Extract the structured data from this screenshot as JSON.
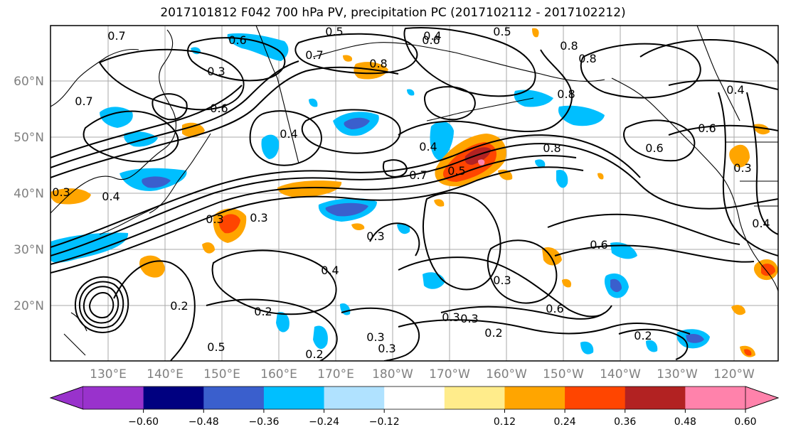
{
  "title": "2017101812 F042 700 hPa PV, precipitation PC (2017102112 - 2017102212)",
  "map": {
    "lat_ticks": [
      "60°N",
      "50°N",
      "40°N",
      "30°N",
      "20°N"
    ],
    "lon_ticks": [
      "130°E",
      "140°E",
      "150°E",
      "160°E",
      "170°E",
      "180°W",
      "170°W",
      "160°W",
      "150°W",
      "140°W",
      "130°W",
      "120°W"
    ],
    "contour_labels": [
      "0.7",
      "0.5",
      "0.4",
      "0.5",
      "0.8",
      "0.6",
      "0.6",
      "0.7",
      "0.8",
      "0.7",
      "0.6",
      "0.3",
      "0.8",
      "0.4",
      "0.6",
      "0.8",
      "0.6",
      "0.3",
      "0.4",
      "0.4",
      "0.7",
      "0.5",
      "0.8",
      "0.4",
      "0.3",
      "0.3",
      "0.3",
      "0.4",
      "0.6",
      "0.3",
      "0.2",
      "0.4",
      "0.3",
      "0.2",
      "0.2",
      "0.3",
      "0.6",
      "0.2",
      "0.3",
      "0.3",
      "0.5",
      "0.3",
      "0.2"
    ]
  },
  "colorbar": {
    "colors": [
      "#9932cc",
      "#000080",
      "#3a5fcd",
      "#00bfff",
      "#b0e2ff",
      "#ffffff",
      "#ffec8b",
      "#ffa500",
      "#ff4500",
      "#b22222",
      "#ff82ab"
    ],
    "tick_labels": [
      "−0.60",
      "−0.48",
      "−0.36",
      "−0.24",
      "−0.12",
      "0.12",
      "0.24",
      "0.36",
      "0.48",
      "0.60"
    ]
  }
}
